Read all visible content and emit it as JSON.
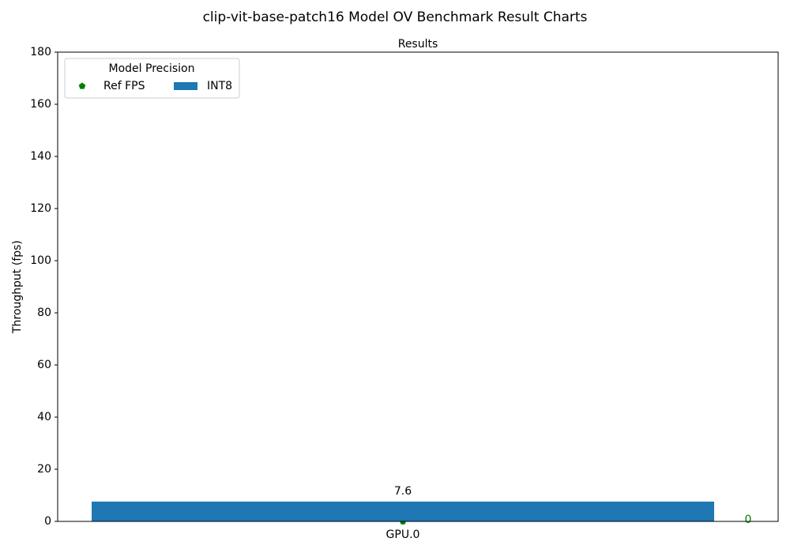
{
  "chart_data": {
    "type": "bar",
    "title": "clip-vit-base-patch16 Model OV Benchmark Result Charts",
    "subtitle": "Results",
    "y_label": "Throughput (fps)",
    "categories": [
      "GPU.0"
    ],
    "series": [
      {
        "name": "Ref FPS",
        "color": "#008000",
        "marker": "pentagon",
        "values": [
          0
        ]
      },
      {
        "name": "INT8",
        "color": "#1f77b4",
        "values": [
          7.6
        ]
      }
    ],
    "ylim": [
      0,
      180
    ],
    "yticks": [
      0,
      20,
      40,
      60,
      80,
      100,
      120,
      140,
      160,
      180
    ],
    "legend_title": "Model Precision",
    "legend": "upper left"
  }
}
